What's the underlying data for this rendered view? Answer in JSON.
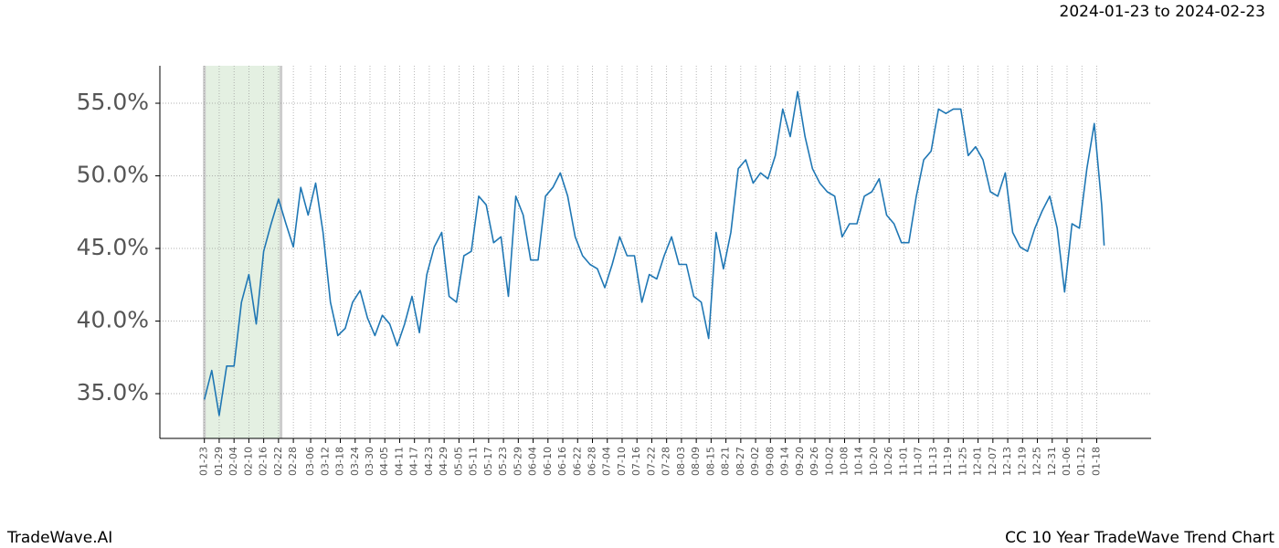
{
  "chart_data": {
    "type": "line",
    "subtitle": "2024-01-23 to 2024-02-23",
    "footer_left": "TradeWave.AI",
    "footer_right": "CC 10 Year TradeWave Trend Chart",
    "color": "#1f77b4",
    "grid": true,
    "x": [
      "01-23",
      "01-26",
      "01-29",
      "02-01",
      "02-04",
      "02-07",
      "02-10",
      "02-13",
      "02-16",
      "02-19",
      "02-22",
      "02-25",
      "02-28",
      "03-02",
      "03-05",
      "03-08",
      "03-11",
      "03-14",
      "03-17",
      "03-20",
      "03-23",
      "03-26",
      "03-29",
      "04-01",
      "04-04",
      "04-07",
      "04-10",
      "04-13",
      "04-16",
      "04-19",
      "04-22",
      "04-25",
      "04-28",
      "05-01",
      "05-04",
      "05-07",
      "05-10",
      "05-13",
      "05-16",
      "05-19",
      "05-22",
      "05-25",
      "05-28",
      "05-31",
      "06-03",
      "06-06",
      "06-09",
      "06-12",
      "06-15",
      "06-18",
      "06-21",
      "06-24",
      "06-27",
      "06-30",
      "07-03",
      "07-06",
      "07-09",
      "07-12",
      "07-15",
      "07-18",
      "07-21",
      "07-24",
      "07-27",
      "07-30",
      "08-02",
      "08-05",
      "08-08",
      "08-11",
      "08-14",
      "08-17",
      "08-20",
      "08-23",
      "08-26",
      "08-29",
      "09-01",
      "09-04",
      "09-07",
      "09-10",
      "09-13",
      "09-16",
      "09-19",
      "09-22",
      "09-25",
      "09-28",
      "10-01",
      "10-04",
      "10-07",
      "10-10",
      "10-13",
      "10-16",
      "10-19",
      "10-22",
      "10-25",
      "10-28",
      "10-31",
      "11-03",
      "11-06",
      "11-09",
      "11-12",
      "11-15",
      "11-18",
      "11-21",
      "11-24",
      "11-27",
      "11-30",
      "12-03",
      "12-06",
      "12-09",
      "12-12",
      "12-15",
      "12-18",
      "12-21",
      "12-24",
      "12-27",
      "12-30",
      "01-02",
      "01-05",
      "01-08",
      "01-11",
      "01-14",
      "01-17",
      "01-20",
      "01-21"
    ],
    "values": [
      34.6,
      36.6,
      33.5,
      36.9,
      36.9,
      41.3,
      43.2,
      39.8,
      44.8,
      46.7,
      48.4,
      46.7,
      45.1,
      49.2,
      47.3,
      49.5,
      46.1,
      41.3,
      39.0,
      39.5,
      41.3,
      42.1,
      40.2,
      39.0,
      40.4,
      39.8,
      38.3,
      39.8,
      41.7,
      39.2,
      43.2,
      45.1,
      46.1,
      41.7,
      41.3,
      44.5,
      44.8,
      48.6,
      48.0,
      45.4,
      45.8,
      41.7,
      48.6,
      47.3,
      44.2,
      44.2,
      48.6,
      49.2,
      50.2,
      48.6,
      45.8,
      44.5,
      43.9,
      43.6,
      42.3,
      43.9,
      45.8,
      44.5,
      44.5,
      41.3,
      43.2,
      42.9,
      44.5,
      45.8,
      43.9,
      43.9,
      41.7,
      41.3,
      38.8,
      46.1,
      43.6,
      46.1,
      50.5,
      51.1,
      49.5,
      50.2,
      49.8,
      51.4,
      54.6,
      52.7,
      55.8,
      52.7,
      50.5,
      49.5,
      48.9,
      48.6,
      45.8,
      46.7,
      46.7,
      48.6,
      48.9,
      49.8,
      47.3,
      46.7,
      45.4,
      45.4,
      48.6,
      51.1,
      51.7,
      54.6,
      54.3,
      54.6,
      54.6,
      51.4,
      52.0,
      51.1,
      48.9,
      48.6,
      50.2,
      46.1,
      45.1,
      44.8,
      46.4,
      47.6,
      48.6,
      46.4,
      42.0,
      46.7,
      46.4,
      50.5,
      53.6,
      48.0,
      45.2
    ],
    "xlim": [
      "01-05",
      "02-09"
    ],
    "xticks": [
      "01-23",
      "01-29",
      "02-04",
      "02-10",
      "02-16",
      "02-22",
      "02-28",
      "03-06",
      "03-12",
      "03-18",
      "03-24",
      "03-30",
      "04-05",
      "04-11",
      "04-17",
      "04-23",
      "04-29",
      "05-05",
      "05-11",
      "05-17",
      "05-23",
      "05-29",
      "06-04",
      "06-10",
      "06-16",
      "06-22",
      "06-28",
      "07-04",
      "07-10",
      "07-16",
      "07-22",
      "07-28",
      "08-03",
      "08-09",
      "08-15",
      "08-21",
      "08-27",
      "09-02",
      "09-08",
      "09-14",
      "09-20",
      "09-26",
      "10-02",
      "10-08",
      "10-14",
      "10-20",
      "10-26",
      "11-01",
      "11-07",
      "11-13",
      "11-19",
      "11-25",
      "12-01",
      "12-07",
      "12-13",
      "12-19",
      "12-25",
      "12-31",
      "01-06",
      "01-12",
      "01-18"
    ],
    "ylim": [
      31.92,
      57.58
    ],
    "yticks": [
      {
        "value": 35,
        "label": "35.0%"
      },
      {
        "value": 40,
        "label": "40.0%"
      },
      {
        "value": 45,
        "label": "45.0%"
      },
      {
        "value": 50,
        "label": "50.0%"
      },
      {
        "value": 55,
        "label": "55.0%"
      }
    ]
  }
}
